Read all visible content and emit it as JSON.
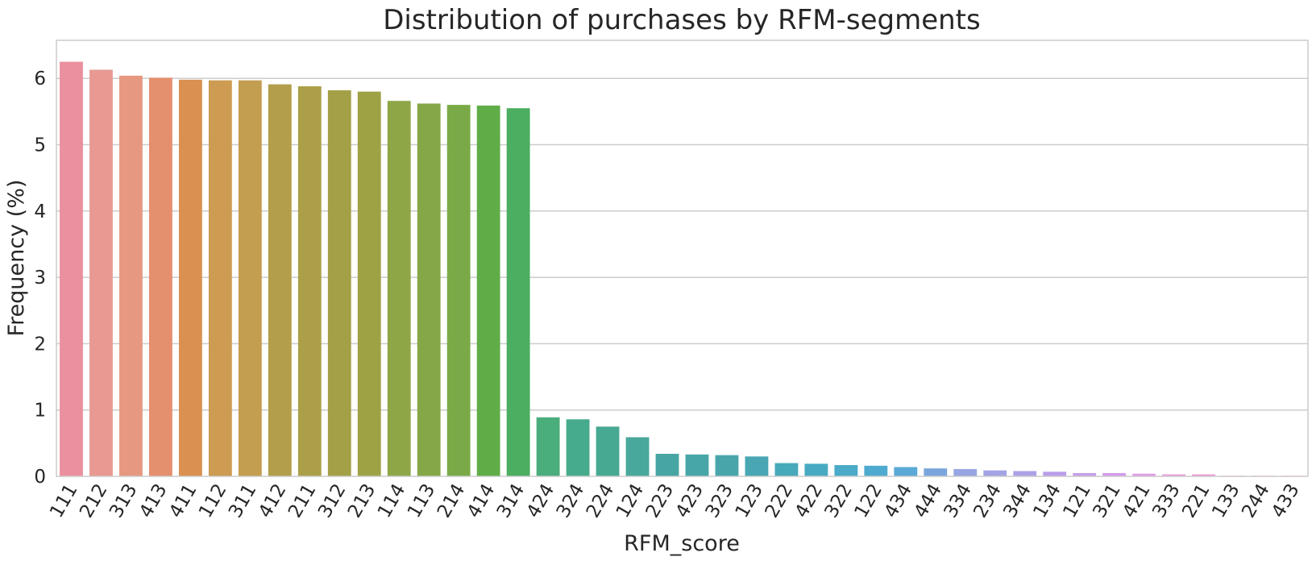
{
  "chart_data": {
    "type": "bar",
    "title": "Distribution of purchases by RFM-segments",
    "xlabel": "RFM_score",
    "ylabel": "Frequency (%)",
    "ylim": [
      0,
      6.6
    ],
    "yticks": [
      "0",
      "1",
      "2",
      "3",
      "4",
      "5",
      "6"
    ],
    "grid": true,
    "categories": [
      "111",
      "212",
      "313",
      "413",
      "411",
      "112",
      "311",
      "412",
      "211",
      "312",
      "213",
      "114",
      "113",
      "214",
      "414",
      "314",
      "424",
      "324",
      "224",
      "124",
      "223",
      "423",
      "323",
      "123",
      "222",
      "422",
      "322",
      "122",
      "434",
      "444",
      "334",
      "234",
      "344",
      "134",
      "121",
      "321",
      "421",
      "333",
      "221",
      "133",
      "244",
      "433"
    ],
    "values": [
      6.25,
      6.13,
      6.04,
      6.01,
      5.98,
      5.97,
      5.97,
      5.91,
      5.88,
      5.82,
      5.8,
      5.66,
      5.62,
      5.6,
      5.59,
      5.55,
      0.89,
      0.86,
      0.75,
      0.59,
      0.34,
      0.33,
      0.32,
      0.3,
      0.2,
      0.19,
      0.17,
      0.16,
      0.14,
      0.12,
      0.11,
      0.09,
      0.08,
      0.07,
      0.05,
      0.05,
      0.04,
      0.03,
      0.03,
      0.01,
      0.01,
      0.01
    ],
    "colors": [
      "#eb909e",
      "#e89a92",
      "#e79880",
      "#e48f6d",
      "#d99050",
      "#cd9b52",
      "#c39d50",
      "#b39e4b",
      "#ab9f49",
      "#a4a048",
      "#9ea245",
      "#8fa647",
      "#86a748",
      "#7aaa47",
      "#60ad48",
      "#4bae60",
      "#4aad7c",
      "#46ab8c",
      "#48a993",
      "#48a89b",
      "#47a6a3",
      "#47a6a7",
      "#48a6ab",
      "#48a7b3",
      "#48a9ba",
      "#48aac2",
      "#4aaac8",
      "#4eaace",
      "#5aa9d6",
      "#7ba6dd",
      "#97a5e2",
      "#a3a3e5",
      "#afa1e8",
      "#bb9ee9",
      "#c79de9",
      "#d29be9",
      "#e19be5",
      "#ea9ae0",
      "#ec98d5",
      "#ec97c8",
      "#ec96bd",
      "#ec97b3"
    ]
  }
}
